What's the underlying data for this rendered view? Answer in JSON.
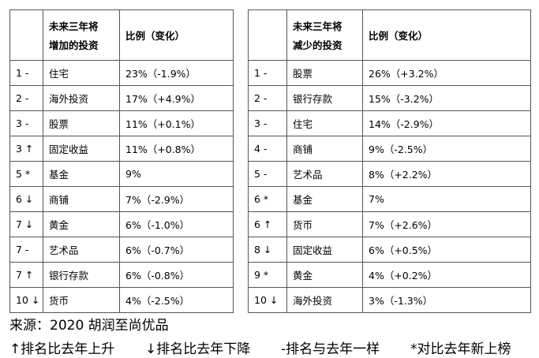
{
  "left_table": {
    "header": {
      "rank": "",
      "item_line1": "未来三年将",
      "item_line2": "增加的投资",
      "ratio": "比例（变化）"
    },
    "rows": [
      {
        "rank": "1 -",
        "item": "住宅",
        "ratio": "23%（-1.9%）"
      },
      {
        "rank": "2 -",
        "item": "海外投资",
        "ratio": "17%（+4.9%）"
      },
      {
        "rank": "3 -",
        "item": "股票",
        "ratio": "11%（+0.1%）"
      },
      {
        "rank": "3 ↑",
        "item": "固定收益",
        "ratio": "11%（+0.8%）"
      },
      {
        "rank": "5 *",
        "item": "基金",
        "ratio": "9%"
      },
      {
        "rank": "6 ↓",
        "item": "商铺",
        "ratio": "7%（-2.9%）"
      },
      {
        "rank": "7 ↓",
        "item": "黄金",
        "ratio": "6%（-1.0%）"
      },
      {
        "rank": "7 -",
        "item": "艺术品",
        "ratio": "6%（-0.7%）"
      },
      {
        "rank": "7 ↑",
        "item": "银行存款",
        "ratio": "6%（-0.8%）"
      },
      {
        "rank": "10 ↓",
        "item": "货币",
        "ratio": "4%（-2.5%）"
      }
    ]
  },
  "right_table": {
    "header": {
      "rank": "",
      "item_line1": "未来三年将",
      "item_line2": "减少的投资",
      "ratio": "比例（变化）"
    },
    "rows": [
      {
        "rank": "1 -",
        "item": "股票",
        "ratio": "26%（+3.2%）"
      },
      {
        "rank": "2 -",
        "item": "银行存款",
        "ratio": "15%（-3.2%）"
      },
      {
        "rank": "3 -",
        "item": "住宅",
        "ratio": "14%（-2.9%）"
      },
      {
        "rank": "4 -",
        "item": "商铺",
        "ratio": "9%（-2.5%）"
      },
      {
        "rank": "5 -",
        "item": "艺术品",
        "ratio": "8%（+2.2%）"
      },
      {
        "rank": "6 *",
        "item": "基金",
        "ratio": "7%"
      },
      {
        "rank": "6 ↑",
        "item": "货币",
        "ratio": "7%（+2.6%）"
      },
      {
        "rank": "8 ↓",
        "item": "固定收益",
        "ratio": "6%（+0.5%）"
      },
      {
        "rank": "9 *",
        "item": "黄金",
        "ratio": "4%（+0.2%）"
      },
      {
        "rank": "10 ↓",
        "item": "海外投资",
        "ratio": "3%（-1.3%）"
      }
    ]
  },
  "footer": {
    "source": "来源：2020 胡润至尚优品",
    "legend": [
      "↑排名比去年上升",
      "↓排名比去年下降",
      "-排名与去年一样",
      "*对比去年新上榜"
    ]
  }
}
